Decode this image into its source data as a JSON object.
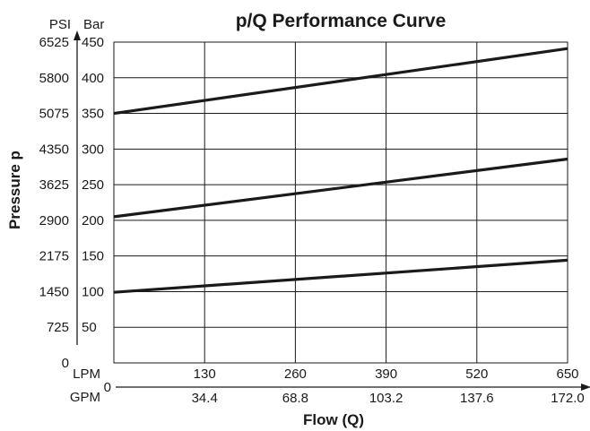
{
  "chart_data": {
    "type": "line",
    "title": "p/Q Performance Curve",
    "ylabel": "Pressure p",
    "xlabel": "Flow (Q)",
    "y_unit_primary": "Bar",
    "y_unit_secondary": "PSI",
    "x_unit_primary": "LPM",
    "x_unit_secondary": "GPM",
    "x_origin_label": "0",
    "ylim": [
      0,
      450
    ],
    "xlim": [
      0,
      650
    ],
    "yticks": [
      {
        "bar": 0,
        "bar_label": "",
        "psi_label": "0"
      },
      {
        "bar": 50,
        "bar_label": "50",
        "psi_label": "725"
      },
      {
        "bar": 100,
        "bar_label": "100",
        "psi_label": "1450"
      },
      {
        "bar": 150,
        "bar_label": "150",
        "psi_label": "2175"
      },
      {
        "bar": 200,
        "bar_label": "200",
        "psi_label": "2900"
      },
      {
        "bar": 250,
        "bar_label": "250",
        "psi_label": "3625"
      },
      {
        "bar": 300,
        "bar_label": "300",
        "psi_label": "4350"
      },
      {
        "bar": 350,
        "bar_label": "350",
        "psi_label": "5075"
      },
      {
        "bar": 400,
        "bar_label": "400",
        "psi_label": "5800"
      },
      {
        "bar": 450,
        "bar_label": "450",
        "psi_label": "6525"
      }
    ],
    "xticks": [
      {
        "lpm": 130,
        "lpm_label": "130",
        "gpm_label": "34.4"
      },
      {
        "lpm": 260,
        "lpm_label": "260",
        "gpm_label": "68.8"
      },
      {
        "lpm": 390,
        "lpm_label": "390",
        "gpm_label": "103.2"
      },
      {
        "lpm": 520,
        "lpm_label": "520",
        "gpm_label": "137.6"
      },
      {
        "lpm": 650,
        "lpm_label": "650",
        "gpm_label": "172.0"
      }
    ],
    "series": [
      {
        "x": [
          0,
          650
        ],
        "y": [
          350,
          441
        ]
      },
      {
        "x": [
          0,
          650
        ],
        "y": [
          205,
          286
        ]
      },
      {
        "x": [
          0,
          650
        ],
        "y": [
          99,
          144
        ]
      }
    ],
    "grid": true
  }
}
